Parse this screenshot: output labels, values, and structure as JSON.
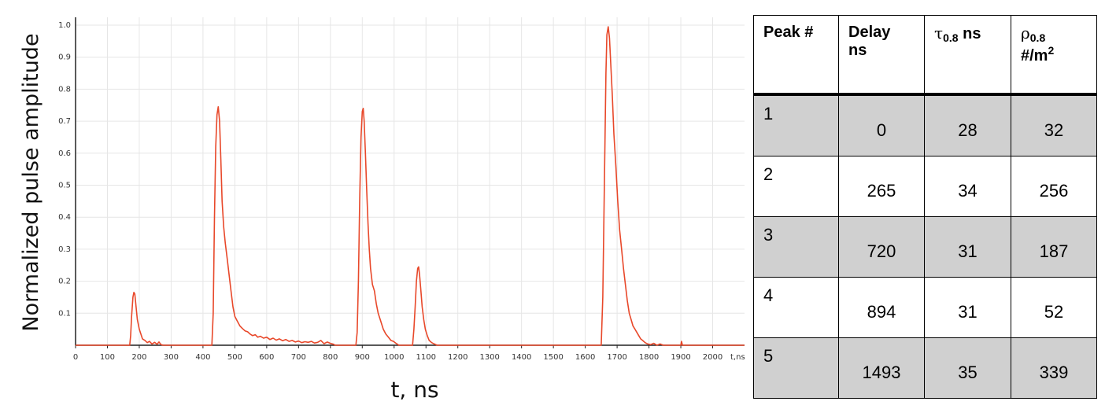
{
  "chart_data": {
    "type": "line",
    "xlabel": "t, ns",
    "ylabel": "Normalized pulse amplitude",
    "x_unit_tick": "t,ns",
    "xlim": [
      0,
      2100
    ],
    "ylim": [
      0,
      1.0
    ],
    "x_ticks": [
      0,
      100,
      200,
      300,
      400,
      500,
      600,
      700,
      800,
      900,
      1000,
      1100,
      1200,
      1300,
      1400,
      1500,
      1600,
      1700,
      1800,
      1900,
      2000
    ],
    "y_ticks": [
      0.1,
      0.2,
      0.3,
      0.4,
      0.5,
      0.6,
      0.7,
      0.8,
      0.9,
      1.0
    ],
    "grid": true,
    "color": "#e8482a",
    "series": [
      {
        "name": "",
        "points": [
          [
            0,
            0
          ],
          [
            170,
            0
          ],
          [
            173,
            0.03
          ],
          [
            176,
            0.09
          ],
          [
            180,
            0.15
          ],
          [
            183,
            0.165
          ],
          [
            186,
            0.16
          ],
          [
            190,
            0.12
          ],
          [
            194,
            0.08
          ],
          [
            200,
            0.05
          ],
          [
            205,
            0.035
          ],
          [
            210,
            0.02
          ],
          [
            218,
            0.015
          ],
          [
            225,
            0.008
          ],
          [
            232,
            0.012
          ],
          [
            240,
            0.004
          ],
          [
            248,
            0.009
          ],
          [
            256,
            0.003
          ],
          [
            262,
            0.01
          ],
          [
            268,
            0.002
          ],
          [
            275,
            0
          ],
          [
            428,
            0
          ],
          [
            432,
            0.1
          ],
          [
            436,
            0.4
          ],
          [
            440,
            0.62
          ],
          [
            444,
            0.72
          ],
          [
            448,
            0.745
          ],
          [
            452,
            0.7
          ],
          [
            456,
            0.58
          ],
          [
            460,
            0.45
          ],
          [
            465,
            0.37
          ],
          [
            470,
            0.32
          ],
          [
            476,
            0.27
          ],
          [
            482,
            0.22
          ],
          [
            488,
            0.17
          ],
          [
            494,
            0.12
          ],
          [
            500,
            0.09
          ],
          [
            508,
            0.075
          ],
          [
            516,
            0.06
          ],
          [
            524,
            0.052
          ],
          [
            532,
            0.045
          ],
          [
            540,
            0.042
          ],
          [
            548,
            0.035
          ],
          [
            556,
            0.03
          ],
          [
            564,
            0.033
          ],
          [
            572,
            0.025
          ],
          [
            580,
            0.028
          ],
          [
            590,
            0.022
          ],
          [
            600,
            0.025
          ],
          [
            610,
            0.018
          ],
          [
            620,
            0.022
          ],
          [
            630,
            0.016
          ],
          [
            640,
            0.02
          ],
          [
            650,
            0.014
          ],
          [
            660,
            0.018
          ],
          [
            670,
            0.012
          ],
          [
            680,
            0.015
          ],
          [
            690,
            0.01
          ],
          [
            700,
            0.013
          ],
          [
            710,
            0.008
          ],
          [
            720,
            0.011
          ],
          [
            730,
            0.009
          ],
          [
            740,
            0.012
          ],
          [
            750,
            0.007
          ],
          [
            760,
            0.009
          ],
          [
            770,
            0.015
          ],
          [
            780,
            0.005
          ],
          [
            790,
            0.01
          ],
          [
            800,
            0.006
          ],
          [
            810,
            0.003
          ],
          [
            815,
            0
          ],
          [
            880,
            0
          ],
          [
            884,
            0.04
          ],
          [
            888,
            0.2
          ],
          [
            892,
            0.45
          ],
          [
            896,
            0.65
          ],
          [
            900,
            0.73
          ],
          [
            903,
            0.74
          ],
          [
            906,
            0.7
          ],
          [
            910,
            0.6
          ],
          [
            914,
            0.48
          ],
          [
            918,
            0.38
          ],
          [
            922,
            0.3
          ],
          [
            926,
            0.24
          ],
          [
            932,
            0.19
          ],
          [
            938,
            0.17
          ],
          [
            944,
            0.13
          ],
          [
            950,
            0.1
          ],
          [
            958,
            0.075
          ],
          [
            966,
            0.05
          ],
          [
            974,
            0.035
          ],
          [
            982,
            0.025
          ],
          [
            990,
            0.015
          ],
          [
            998,
            0.012
          ],
          [
            1006,
            0.006
          ],
          [
            1015,
            0
          ],
          [
            1058,
            0
          ],
          [
            1062,
            0.05
          ],
          [
            1066,
            0.12
          ],
          [
            1070,
            0.2
          ],
          [
            1074,
            0.24
          ],
          [
            1077,
            0.245
          ],
          [
            1080,
            0.22
          ],
          [
            1084,
            0.17
          ],
          [
            1088,
            0.12
          ],
          [
            1093,
            0.08
          ],
          [
            1098,
            0.05
          ],
          [
            1104,
            0.03
          ],
          [
            1110,
            0.015
          ],
          [
            1118,
            0.008
          ],
          [
            1126,
            0.004
          ],
          [
            1135,
            0
          ],
          [
            1650,
            0
          ],
          [
            1655,
            0.15
          ],
          [
            1660,
            0.5
          ],
          [
            1665,
            0.85
          ],
          [
            1668,
            0.97
          ],
          [
            1672,
            0.995
          ],
          [
            1676,
            0.96
          ],
          [
            1680,
            0.88
          ],
          [
            1685,
            0.78
          ],
          [
            1690,
            0.66
          ],
          [
            1696,
            0.56
          ],
          [
            1702,
            0.45
          ],
          [
            1708,
            0.36
          ],
          [
            1714,
            0.3
          ],
          [
            1720,
            0.24
          ],
          [
            1726,
            0.19
          ],
          [
            1732,
            0.14
          ],
          [
            1738,
            0.1
          ],
          [
            1744,
            0.08
          ],
          [
            1750,
            0.06
          ],
          [
            1756,
            0.05
          ],
          [
            1762,
            0.04
          ],
          [
            1768,
            0.03
          ],
          [
            1774,
            0.02
          ],
          [
            1780,
            0.015
          ],
          [
            1788,
            0.008
          ],
          [
            1796,
            0.004
          ],
          [
            1805,
            0.002
          ],
          [
            1815,
            0.006
          ],
          [
            1825,
            0
          ],
          [
            1835,
            0.004
          ],
          [
            1845,
            0
          ],
          [
            1900,
            0
          ],
          [
            1902,
            0.012
          ],
          [
            1905,
            0
          ],
          [
            2100,
            0
          ]
        ]
      }
    ]
  },
  "table": {
    "headers": {
      "peak": "Peak #",
      "delay_line1": "Delay",
      "delay_line2": "ns",
      "tau_symbol": "τ",
      "tau_sub": "0.8",
      "tau_unit": "ns",
      "rho_symbol": "ρ",
      "rho_sub": "0.8",
      "rho_unit": "#/m",
      "rho_sup": "2"
    },
    "rows": [
      {
        "peak": "1",
        "delay": "0",
        "tau": "28",
        "rho": "32"
      },
      {
        "peak": "2",
        "delay": "265",
        "tau": "34",
        "rho": "256"
      },
      {
        "peak": "3",
        "delay": "720",
        "tau": "31",
        "rho": "187"
      },
      {
        "peak": "4",
        "delay": "894",
        "tau": "31",
        "rho": "52"
      },
      {
        "peak": "5",
        "delay": "1493",
        "tau": "35",
        "rho": "339"
      }
    ]
  }
}
